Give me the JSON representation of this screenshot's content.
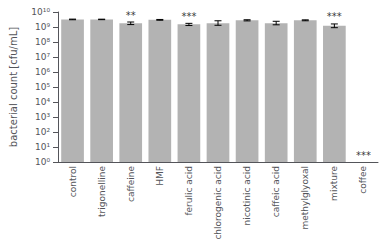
{
  "chart_data": {
    "type": "bar",
    "categories": [
      "control",
      "trigonelline",
      "caffeine",
      "HMF",
      "ferulic acid",
      "chlorogenic acid",
      "nicotinic acid",
      "caffeic acid",
      "methylglyoxal",
      "mixture",
      "coffee"
    ],
    "values": [
      3200000000,
      3200000000,
      1800000000,
      3000000000,
      1500000000,
      1800000000,
      2800000000,
      1800000000,
      2800000000,
      1200000000,
      1.0
    ],
    "errors_upper": [
      150000000,
      120000000,
      350000000,
      180000000,
      250000000,
      800000000,
      250000000,
      600000000,
      200000000,
      400000000,
      null
    ],
    "errors_lower": [
      150000000,
      120000000,
      350000000,
      180000000,
      250000000,
      500000000,
      250000000,
      400000000,
      200000000,
      300000000,
      null
    ],
    "annotations": [
      null,
      null,
      "**",
      null,
      "***",
      null,
      null,
      null,
      null,
      "***",
      "***"
    ],
    "color": "#b3b3b3",
    "ylabel": "bacterial count [cfu/mL]",
    "log": "y",
    "ylim": [
      1,
      10000000000
    ],
    "yticks": [
      {
        "value": 1,
        "label": "10⁰"
      },
      {
        "value": 10,
        "label": "10¹"
      },
      {
        "value": 100,
        "label": "10²"
      },
      {
        "value": 1000,
        "label": "10³"
      },
      {
        "value": 10000,
        "label": "10⁴"
      },
      {
        "value": 100000,
        "label": "10⁵"
      },
      {
        "value": 1000000,
        "label": "10⁶"
      },
      {
        "value": 10000000,
        "label": "10⁷"
      },
      {
        "value": 100000000,
        "label": "10⁸"
      },
      {
        "value": 1000000000,
        "label": "10⁹"
      },
      {
        "value": 10000000000,
        "label": "10¹⁰"
      }
    ],
    "grid": false
  }
}
